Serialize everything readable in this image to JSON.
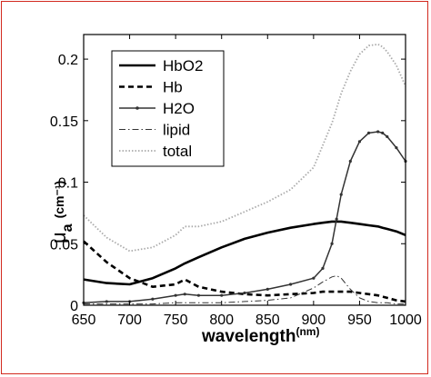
{
  "chart_data": {
    "type": "line",
    "title": "",
    "xlabel": "wavelength",
    "xlabel_unit": "(nm)",
    "ylabel_symbol": "μ",
    "ylabel_subscript": "a",
    "ylabel_unit": "(cm⁻¹)",
    "xlim": [
      650,
      1000
    ],
    "ylim": [
      0,
      0.22
    ],
    "x_ticks": [
      "650",
      "700",
      "750",
      "800",
      "850",
      "900",
      "950",
      "1000"
    ],
    "y_ticks": [
      "0",
      "0.05",
      "0.1",
      "0.15",
      "0.2"
    ],
    "grid": false,
    "legend_position": "top-left",
    "x": [
      650,
      675,
      700,
      725,
      750,
      760,
      775,
      800,
      825,
      850,
      875,
      900,
      910,
      920,
      925,
      930,
      940,
      950,
      960,
      970,
      975,
      980,
      990,
      1000
    ],
    "series": [
      {
        "name": "HbO2",
        "style": "solid",
        "values": [
          0.021,
          0.018,
          0.017,
          0.022,
          0.03,
          0.034,
          0.039,
          0.047,
          0.054,
          0.059,
          0.063,
          0.066,
          0.067,
          0.068,
          0.068,
          0.068,
          0.067,
          0.066,
          0.065,
          0.064,
          0.063,
          0.062,
          0.06,
          0.057
        ]
      },
      {
        "name": "Hb",
        "style": "dashed",
        "values": [
          0.052,
          0.035,
          0.022,
          0.015,
          0.017,
          0.021,
          0.015,
          0.011,
          0.009,
          0.008,
          0.009,
          0.01,
          0.011,
          0.011,
          0.011,
          0.011,
          0.011,
          0.01,
          0.009,
          0.008,
          0.007,
          0.006,
          0.004,
          0.003
        ]
      },
      {
        "name": "H2O",
        "style": "solid-marker",
        "values": [
          0.002,
          0.003,
          0.003,
          0.005,
          0.008,
          0.009,
          0.008,
          0.008,
          0.01,
          0.013,
          0.017,
          0.022,
          0.03,
          0.05,
          0.07,
          0.09,
          0.117,
          0.133,
          0.14,
          0.141,
          0.14,
          0.137,
          0.128,
          0.117
        ]
      },
      {
        "name": "lipid",
        "style": "dashdot",
        "values": [
          0.001,
          0.001,
          0.001,
          0.001,
          0.002,
          0.002,
          0.002,
          0.002,
          0.003,
          0.004,
          0.006,
          0.014,
          0.019,
          0.023,
          0.024,
          0.022,
          0.013,
          0.006,
          0.003,
          0.002,
          0.002,
          0.002,
          0.001,
          0.001
        ]
      },
      {
        "name": "total",
        "style": "dotted",
        "values": [
          0.073,
          0.055,
          0.044,
          0.047,
          0.057,
          0.064,
          0.064,
          0.068,
          0.076,
          0.084,
          0.094,
          0.112,
          0.13,
          0.148,
          0.16,
          0.172,
          0.19,
          0.204,
          0.211,
          0.212,
          0.21,
          0.206,
          0.195,
          0.178
        ]
      }
    ]
  }
}
